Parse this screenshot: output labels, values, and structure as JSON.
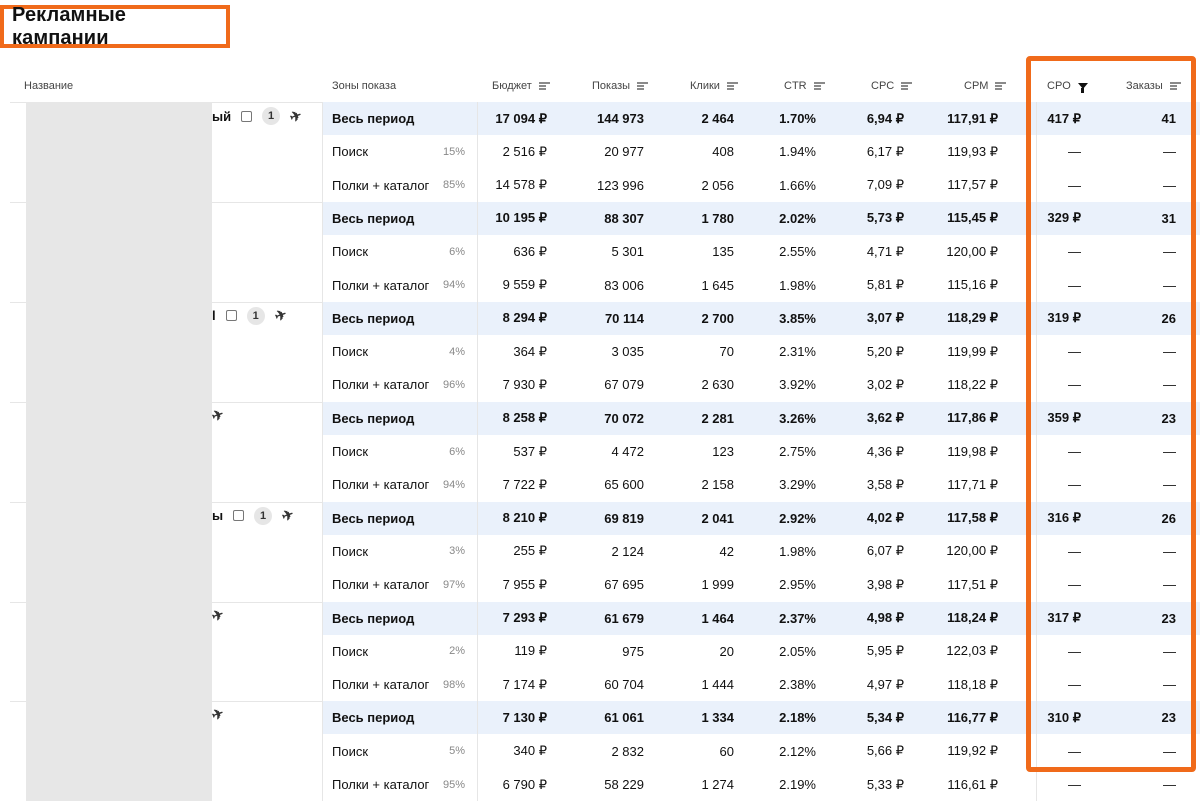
{
  "page": {
    "title": "Рекламные кампании"
  },
  "colors": {
    "accent": "#f06a1a",
    "summary_row": "#eaf1fb"
  },
  "headers": {
    "name": "Название",
    "zones": "Зоны показа",
    "budget": "Бюджет",
    "impressions": "Показы",
    "clicks": "Клики",
    "ctr": "CTR",
    "cpc": "CPC",
    "cpm": "CPM",
    "cpo": "CPO",
    "orders": "Заказы"
  },
  "name_fragments": [
    {
      "text": "ый",
      "badge": "1",
      "icons": [
        "external-link-icon",
        "rocket-icon"
      ]
    },
    {
      "text": "",
      "badge": "",
      "icons": []
    },
    {
      "text": "l",
      "badge": "1",
      "icons": [
        "external-link-icon",
        "rocket-icon"
      ]
    },
    {
      "text": "",
      "badge": "",
      "icons": [
        "rocket-icon"
      ]
    },
    {
      "text": "ы",
      "badge": "1",
      "icons": [
        "external-link-icon",
        "rocket-icon"
      ]
    },
    {
      "text": "",
      "badge": "",
      "icons": [
        "rocket-icon"
      ]
    },
    {
      "text": "",
      "badge": "",
      "icons": [
        "rocket-icon"
      ]
    }
  ],
  "campaigns": [
    {
      "rows": [
        {
          "zone": "Весь период",
          "share": "",
          "budget": "17 094 ₽",
          "impressions": "144 973",
          "clicks": "2 464",
          "ctr": "1.70%",
          "cpc": "6,94 ₽",
          "cpm": "117,91 ₽",
          "cpo": "417 ₽",
          "orders": "41"
        },
        {
          "zone": "Поиск",
          "share": "15%",
          "budget": "2 516 ₽",
          "impressions": "20 977",
          "clicks": "408",
          "ctr": "1.94%",
          "cpc": "6,17 ₽",
          "cpm": "119,93 ₽",
          "cpo": "—",
          "orders": "—"
        },
        {
          "zone": "Полки + каталог",
          "share": "85%",
          "budget": "14 578 ₽",
          "impressions": "123 996",
          "clicks": "2 056",
          "ctr": "1.66%",
          "cpc": "7,09 ₽",
          "cpm": "117,57 ₽",
          "cpo": "—",
          "orders": "—"
        }
      ]
    },
    {
      "rows": [
        {
          "zone": "Весь период",
          "share": "",
          "budget": "10 195 ₽",
          "impressions": "88 307",
          "clicks": "1 780",
          "ctr": "2.02%",
          "cpc": "5,73 ₽",
          "cpm": "115,45 ₽",
          "cpo": "329 ₽",
          "orders": "31"
        },
        {
          "zone": "Поиск",
          "share": "6%",
          "budget": "636 ₽",
          "impressions": "5 301",
          "clicks": "135",
          "ctr": "2.55%",
          "cpc": "4,71 ₽",
          "cpm": "120,00 ₽",
          "cpo": "—",
          "orders": "—"
        },
        {
          "zone": "Полки + каталог",
          "share": "94%",
          "budget": "9 559 ₽",
          "impressions": "83 006",
          "clicks": "1 645",
          "ctr": "1.98%",
          "cpc": "5,81 ₽",
          "cpm": "115,16 ₽",
          "cpo": "—",
          "orders": "—"
        }
      ]
    },
    {
      "rows": [
        {
          "zone": "Весь период",
          "share": "",
          "budget": "8 294 ₽",
          "impressions": "70 114",
          "clicks": "2 700",
          "ctr": "3.85%",
          "cpc": "3,07 ₽",
          "cpm": "118,29 ₽",
          "cpo": "319 ₽",
          "orders": "26"
        },
        {
          "zone": "Поиск",
          "share": "4%",
          "budget": "364 ₽",
          "impressions": "3 035",
          "clicks": "70",
          "ctr": "2.31%",
          "cpc": "5,20 ₽",
          "cpm": "119,99 ₽",
          "cpo": "—",
          "orders": "—"
        },
        {
          "zone": "Полки + каталог",
          "share": "96%",
          "budget": "7 930 ₽",
          "impressions": "67 079",
          "clicks": "2 630",
          "ctr": "3.92%",
          "cpc": "3,02 ₽",
          "cpm": "118,22 ₽",
          "cpo": "—",
          "orders": "—"
        }
      ]
    },
    {
      "rows": [
        {
          "zone": "Весь период",
          "share": "",
          "budget": "8 258 ₽",
          "impressions": "70 072",
          "clicks": "2 281",
          "ctr": "3.26%",
          "cpc": "3,62 ₽",
          "cpm": "117,86 ₽",
          "cpo": "359 ₽",
          "orders": "23"
        },
        {
          "zone": "Поиск",
          "share": "6%",
          "budget": "537 ₽",
          "impressions": "4 472",
          "clicks": "123",
          "ctr": "2.75%",
          "cpc": "4,36 ₽",
          "cpm": "119,98 ₽",
          "cpo": "—",
          "orders": "—"
        },
        {
          "zone": "Полки + каталог",
          "share": "94%",
          "budget": "7 722 ₽",
          "impressions": "65 600",
          "clicks": "2 158",
          "ctr": "3.29%",
          "cpc": "3,58 ₽",
          "cpm": "117,71 ₽",
          "cpo": "—",
          "orders": "—"
        }
      ]
    },
    {
      "rows": [
        {
          "zone": "Весь период",
          "share": "",
          "budget": "8 210 ₽",
          "impressions": "69 819",
          "clicks": "2 041",
          "ctr": "2.92%",
          "cpc": "4,02 ₽",
          "cpm": "117,58 ₽",
          "cpo": "316 ₽",
          "orders": "26"
        },
        {
          "zone": "Поиск",
          "share": "3%",
          "budget": "255 ₽",
          "impressions": "2 124",
          "clicks": "42",
          "ctr": "1.98%",
          "cpc": "6,07 ₽",
          "cpm": "120,00 ₽",
          "cpo": "—",
          "orders": "—"
        },
        {
          "zone": "Полки + каталог",
          "share": "97%",
          "budget": "7 955 ₽",
          "impressions": "67 695",
          "clicks": "1 999",
          "ctr": "2.95%",
          "cpc": "3,98 ₽",
          "cpm": "117,51 ₽",
          "cpo": "—",
          "orders": "—"
        }
      ]
    },
    {
      "rows": [
        {
          "zone": "Весь период",
          "share": "",
          "budget": "7 293 ₽",
          "impressions": "61 679",
          "clicks": "1 464",
          "ctr": "2.37%",
          "cpc": "4,98 ₽",
          "cpm": "118,24 ₽",
          "cpo": "317 ₽",
          "orders": "23"
        },
        {
          "zone": "Поиск",
          "share": "2%",
          "budget": "119 ₽",
          "impressions": "975",
          "clicks": "20",
          "ctr": "2.05%",
          "cpc": "5,95 ₽",
          "cpm": "122,03 ₽",
          "cpo": "—",
          "orders": "—"
        },
        {
          "zone": "Полки + каталог",
          "share": "98%",
          "budget": "7 174 ₽",
          "impressions": "60 704",
          "clicks": "1 444",
          "ctr": "2.38%",
          "cpc": "4,97 ₽",
          "cpm": "118,18 ₽",
          "cpo": "—",
          "orders": "—"
        }
      ]
    },
    {
      "rows": [
        {
          "zone": "Весь период",
          "share": "",
          "budget": "7 130 ₽",
          "impressions": "61 061",
          "clicks": "1 334",
          "ctr": "2.18%",
          "cpc": "5,34 ₽",
          "cpm": "116,77 ₽",
          "cpo": "310 ₽",
          "orders": "23"
        },
        {
          "zone": "Поиск",
          "share": "5%",
          "budget": "340 ₽",
          "impressions": "2 832",
          "clicks": "60",
          "ctr": "2.12%",
          "cpc": "5,66 ₽",
          "cpm": "119,92 ₽",
          "cpo": "—",
          "orders": "—"
        },
        {
          "zone": "Полки + каталог",
          "share": "95%",
          "budget": "6 790 ₽",
          "impressions": "58 229",
          "clicks": "1 274",
          "ctr": "2.19%",
          "cpc": "5,33 ₽",
          "cpm": "116,61 ₽",
          "cpo": "—",
          "orders": "—"
        }
      ]
    }
  ]
}
